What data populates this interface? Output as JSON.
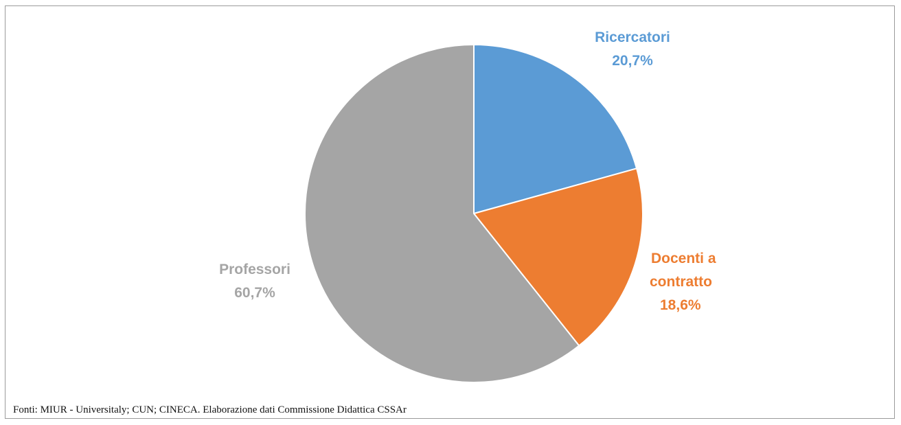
{
  "chart_data": {
    "type": "pie",
    "slices": [
      {
        "label": "Ricercatori",
        "label_lines": [
          "Ricercatori"
        ],
        "value": 20.7,
        "value_text": "20,7%",
        "color": "#5b9bd5"
      },
      {
        "label": "Docenti a contratto",
        "label_lines": [
          "Docenti a",
          "contratto"
        ],
        "value": 18.6,
        "value_text": "18,6%",
        "color": "#ed7d31"
      },
      {
        "label": "Professori",
        "label_lines": [
          "Professori"
        ],
        "value": 60.7,
        "value_text": "60,7%",
        "color": "#a5a5a5"
      }
    ]
  },
  "source_note": "Fonti: MIUR - Universitaly; CUN; CINECA. Elaborazione dati Commissione Didattica CSSAr"
}
